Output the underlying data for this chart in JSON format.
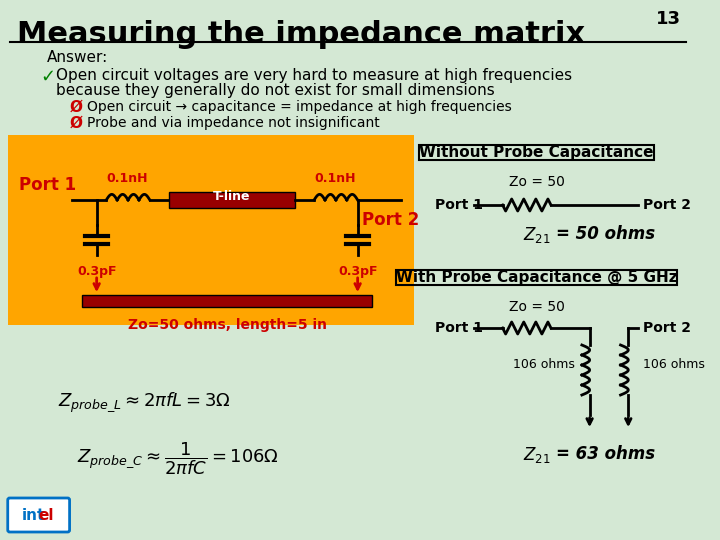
{
  "title": "Measuring the impedance matrix",
  "slide_number": "13",
  "background_color": "#d4e8d4",
  "title_color": "#000000",
  "title_fontsize": 22,
  "answer_text": "Answer:",
  "bullet1": "Open circuit voltages are very hard to measure at high frequencies\nbecause they generally do not exist for small dimensions",
  "sub_bullet1": "Open circuit → capacitance = impedance at high frequencies",
  "sub_bullet2": "Probe and via impedance not insignificant",
  "orange_box_color": "#FFA500",
  "circuit_label_color": "#CC0000",
  "port1_label": "Port 1",
  "port2_label": "Port 2",
  "inductor1_label": "0.1nH",
  "inductor2_label": "0.1nH",
  "tline_label": "T-line",
  "cap1_label": "0.3pF",
  "cap2_label": "0.3pF",
  "tline_bottom_label": "Zo=50 ohms, length=5 in",
  "without_probe_title": "Without Probe Capacitance",
  "zo50_label1": "Zo = 50",
  "port1_label2": "Port 1",
  "port2_label2": "Port 2",
  "z21_label1": "Z",
  "z21_sub1": "21",
  "z21_val1": " = 50 ohms",
  "with_probe_title": "With Probe Capacitance @ 5 GHz",
  "zo50_label2": "Zo = 50",
  "port1_label3": "Port 1",
  "port2_label3": "Port 2",
  "cap_label_left": "106 ohms",
  "cap_label_right": "106 ohms",
  "z21_label2": "Z",
  "z21_sub2": "21",
  "z21_val2": " = 63 ohms",
  "formula1_main": "$Z_{probe\\_L} \\approx 2\\pi f L = 3\\Omega$",
  "formula2_main": "$Z_{probe\\_C} \\approx \\dfrac{1}{2\\pi f C} = 106\\Omega$"
}
